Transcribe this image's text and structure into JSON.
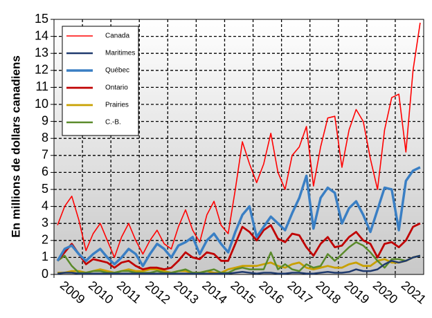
{
  "chart_data": {
    "type": "line",
    "y_label": "En millions de dollars canadiens",
    "categories": [
      "2009",
      null,
      null,
      null,
      "2010",
      null,
      null,
      null,
      "2011",
      null,
      null,
      null,
      "2012",
      null,
      null,
      null,
      "2013",
      null,
      null,
      null,
      "2014",
      null,
      null,
      null,
      "2015",
      null,
      null,
      null,
      "2016",
      null,
      null,
      null,
      "2017",
      null,
      null,
      null,
      "2018",
      null,
      null,
      null,
      "2019",
      null,
      null,
      null,
      "2020",
      null,
      null,
      null,
      "2021",
      null,
      null,
      null
    ],
    "ylim": [
      0,
      15
    ],
    "yticks": [
      0,
      1,
      2,
      3,
      4,
      5,
      6,
      7,
      8,
      9,
      10,
      11,
      12,
      13,
      14,
      15
    ],
    "grid": true,
    "legend": "upper left",
    "series": [
      {
        "name": "Canada",
        "color": "#ff0000",
        "values": [
          2.9,
          4.0,
          4.6,
          3.2,
          1.4,
          2.4,
          3.0,
          2.0,
          1.0,
          2.2,
          3.0,
          2.0,
          1.2,
          2.0,
          2.6,
          1.8,
          1.5,
          2.8,
          3.8,
          2.6,
          1.9,
          3.5,
          4.3,
          2.9,
          2.4,
          5.0,
          7.8,
          6.5,
          5.4,
          6.5,
          8.3,
          6.0,
          5.0,
          7.0,
          7.5,
          8.7,
          5.2,
          7.5,
          9.2,
          9.3,
          6.3,
          8.5,
          9.7,
          9.0,
          6.8,
          5.0,
          8.5,
          10.4,
          10.6,
          7.2,
          12.0,
          14.8
        ]
      },
      {
        "name": "Maritimes",
        "color": "#1f3a6e",
        "values": [
          0.05,
          0.1,
          0.1,
          0.05,
          0.05,
          0.05,
          0.05,
          0.05,
          0.05,
          0.05,
          0.05,
          0.05,
          0.05,
          0.05,
          0.05,
          0.05,
          0.05,
          0.05,
          0.05,
          0.05,
          0.05,
          0.05,
          0.05,
          0.05,
          0.05,
          0.1,
          0.15,
          0.1,
          0.05,
          0.1,
          0.1,
          0.05,
          0.05,
          0.1,
          0.1,
          0.05,
          0.05,
          0.1,
          0.15,
          0.1,
          0.1,
          0.15,
          0.3,
          0.2,
          0.2,
          0.3,
          0.6,
          0.8,
          0.7,
          0.8,
          1.0,
          1.1
        ]
      },
      {
        "name": "Québec",
        "color": "#3a7fc4",
        "values": [
          0.8,
          1.5,
          1.7,
          1.2,
          0.8,
          1.2,
          1.5,
          1.0,
          0.6,
          1.0,
          1.5,
          1.2,
          0.5,
          1.2,
          1.8,
          1.5,
          1.0,
          1.7,
          1.9,
          2.2,
          1.2,
          2.0,
          2.4,
          1.8,
          1.3,
          2.5,
          3.5,
          4.0,
          2.2,
          2.8,
          3.4,
          3.0,
          2.6,
          3.6,
          4.5,
          5.8,
          2.7,
          4.5,
          5.1,
          4.8,
          3.0,
          3.9,
          4.3,
          3.5,
          2.5,
          3.8,
          5.1,
          5.0,
          2.6,
          5.5,
          6.1,
          6.3
        ]
      },
      {
        "name": "Ontario",
        "color": "#c00000",
        "values": [
          0.8,
          1.3,
          1.8,
          1.2,
          0.6,
          0.9,
          0.8,
          0.7,
          0.4,
          0.7,
          0.8,
          0.5,
          0.3,
          0.4,
          0.4,
          0.3,
          0.4,
          0.8,
          1.3,
          1.0,
          0.9,
          1.3,
          1.2,
          0.8,
          0.8,
          1.8,
          2.8,
          2.5,
          2.0,
          2.6,
          2.9,
          2.1,
          1.9,
          2.4,
          2.3,
          1.6,
          1.1,
          1.8,
          2.2,
          1.6,
          1.7,
          2.2,
          2.5,
          2.0,
          1.8,
          1.0,
          1.8,
          1.9,
          1.6,
          2.0,
          2.8,
          3.0
        ]
      },
      {
        "name": "Prairies",
        "color": "#c8a000",
        "values": [
          0.1,
          0.1,
          0.2,
          0.2,
          0.1,
          0.2,
          0.3,
          0.2,
          0.1,
          0.2,
          0.3,
          0.2,
          0.2,
          0.3,
          0.3,
          0.2,
          0.1,
          0.2,
          0.2,
          0.1,
          0.1,
          0.2,
          0.1,
          0.1,
          0.3,
          0.4,
          0.5,
          0.5,
          0.5,
          0.6,
          0.7,
          0.5,
          0.4,
          0.6,
          0.7,
          0.4,
          0.3,
          0.4,
          0.5,
          0.4,
          0.4,
          0.6,
          0.7,
          0.5,
          0.5,
          0.8,
          0.9,
          0.7,
          0.7,
          0.8,
          1.0,
          1.1
        ]
      },
      {
        "name": "C.-B.",
        "color": "#5a8a2a",
        "values": [
          0.8,
          1.1,
          0.5,
          0.1,
          0.1,
          0.2,
          0.2,
          0.1,
          0.1,
          0.2,
          0.2,
          0.1,
          0.1,
          0.1,
          0.2,
          0.1,
          0.1,
          0.2,
          0.3,
          0.1,
          0.1,
          0.2,
          0.3,
          0.1,
          0.1,
          0.3,
          0.4,
          0.3,
          0.3,
          0.3,
          1.3,
          0.3,
          0.6,
          0.3,
          0.2,
          0.6,
          0.4,
          0.5,
          1.2,
          0.8,
          1.2,
          1.6,
          1.9,
          1.7,
          1.3,
          0.8,
          0.4,
          0.9,
          0.9,
          0.8,
          1.0,
          1.1
        ]
      }
    ]
  }
}
